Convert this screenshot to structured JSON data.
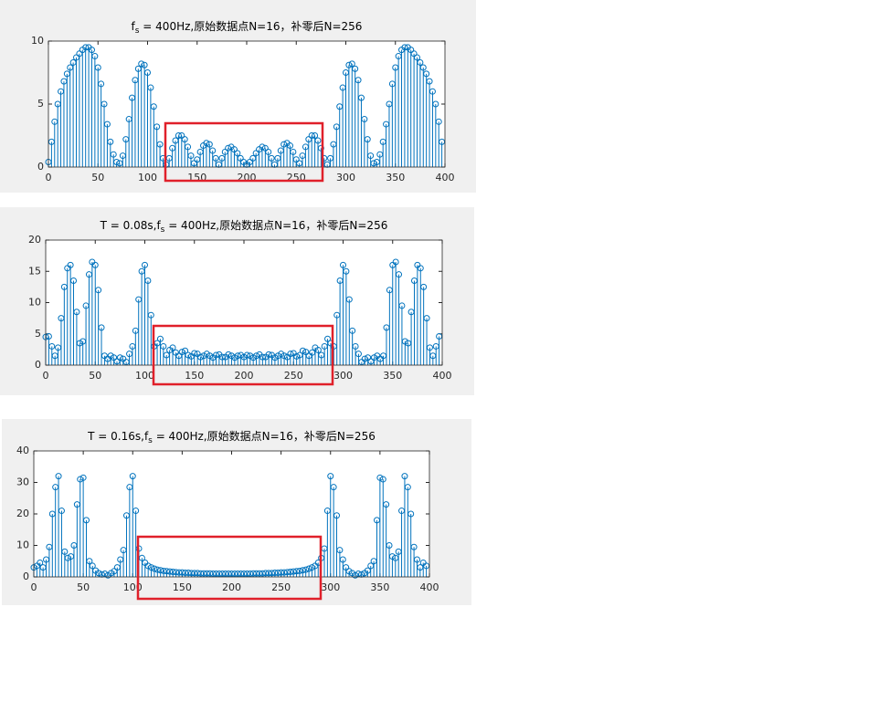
{
  "chart_data": [
    {
      "type": "stem",
      "title_parts": [
        "f",
        "s",
        " = 400Hz,原始数据点N=16，补零后N=256"
      ],
      "color": "#0072bd",
      "xlim": [
        0,
        400
      ],
      "ylim": [
        0,
        10
      ],
      "xticks": [
        0,
        50,
        100,
        150,
        200,
        250,
        300,
        350,
        400
      ],
      "yticks": [
        0,
        5,
        10
      ],
      "x": [
        0,
        3.125,
        6.25,
        9.375,
        12.5,
        15.625,
        18.75,
        21.875,
        25,
        28.125,
        31.25,
        34.375,
        37.5,
        40.625,
        43.75,
        46.875,
        50,
        53.125,
        56.25,
        59.375,
        62.5,
        65.625,
        68.75,
        71.875,
        75,
        78.125,
        81.25,
        84.375,
        87.5,
        90.625,
        93.75,
        96.875,
        100,
        103.125,
        106.25,
        109.375,
        112.5,
        115.625,
        118.75,
        121.875,
        125,
        128.125,
        131.25,
        134.375,
        137.5,
        140.625,
        143.75,
        146.875,
        150,
        153.125,
        156.25,
        159.375,
        162.5,
        165.625,
        168.75,
        171.875,
        175,
        178.125,
        181.25,
        184.375,
        187.5,
        190.625,
        193.75,
        196.875,
        200,
        203.125,
        206.25,
        209.375,
        212.5,
        215.625,
        218.75,
        221.875,
        225,
        228.125,
        231.25,
        234.375,
        237.5,
        240.625,
        243.75,
        246.875,
        250,
        253.125,
        256.25,
        259.375,
        262.5,
        265.625,
        268.75,
        271.875,
        275,
        278.125,
        281.25,
        284.375,
        287.5,
        290.625,
        293.75,
        296.875,
        300,
        303.125,
        306.25,
        309.375,
        312.5,
        315.625,
        318.75,
        321.875,
        325,
        328.125,
        331.25,
        334.375,
        337.5,
        340.625,
        343.75,
        346.875,
        350,
        353.125,
        356.25,
        359.375,
        362.5,
        365.625,
        368.75,
        371.875,
        375,
        378.125,
        381.25,
        384.375,
        387.5,
        390.625,
        393.75,
        396.875
      ],
      "values": [
        0.4,
        2.0,
        3.6,
        5.0,
        6.0,
        6.8,
        7.4,
        7.9,
        8.3,
        8.7,
        9.0,
        9.3,
        9.5,
        9.5,
        9.3,
        8.8,
        7.9,
        6.6,
        5.0,
        3.4,
        2.0,
        1.0,
        0.4,
        0.3,
        0.9,
        2.2,
        3.8,
        5.5,
        6.9,
        7.8,
        8.2,
        8.1,
        7.5,
        6.3,
        4.8,
        3.2,
        1.8,
        0.7,
        0.2,
        0.7,
        1.5,
        2.1,
        2.5,
        2.5,
        2.2,
        1.6,
        0.9,
        0.3,
        0.6,
        1.2,
        1.7,
        1.9,
        1.8,
        1.3,
        0.7,
        0.2,
        0.7,
        1.2,
        1.5,
        1.6,
        1.4,
        1.1,
        0.7,
        0.4,
        0.2,
        0.4,
        0.7,
        1.1,
        1.4,
        1.6,
        1.5,
        1.2,
        0.7,
        0.2,
        0.7,
        1.3,
        1.8,
        1.9,
        1.7,
        1.2,
        0.6,
        0.3,
        0.9,
        1.6,
        2.2,
        2.5,
        2.5,
        2.1,
        1.5,
        0.7,
        0.2,
        0.7,
        1.8,
        3.2,
        4.8,
        6.3,
        7.5,
        8.1,
        8.2,
        7.8,
        6.9,
        5.5,
        3.8,
        2.2,
        0.9,
        0.3,
        0.4,
        1.0,
        2.0,
        3.4,
        5.0,
        6.6,
        7.9,
        8.8,
        9.3,
        9.5,
        9.5,
        9.3,
        9.0,
        8.7,
        8.3,
        7.9,
        7.4,
        6.8,
        6.0,
        5.0,
        3.6,
        2.0
      ]
    },
    {
      "type": "stem",
      "title_parts": [
        "T = 0.08s,f",
        "s",
        " = 400Hz,原始数据点N=16，补零后N=256"
      ],
      "color": "#0072bd",
      "xlim": [
        0,
        400
      ],
      "ylim": [
        0,
        20
      ],
      "xticks": [
        0,
        50,
        100,
        150,
        200,
        250,
        300,
        350,
        400
      ],
      "yticks": [
        0,
        5,
        10,
        15,
        20
      ],
      "x": [
        0,
        3.125,
        6.25,
        9.375,
        12.5,
        15.625,
        18.75,
        21.875,
        25,
        28.125,
        31.25,
        34.375,
        37.5,
        40.625,
        43.75,
        46.875,
        50,
        53.125,
        56.25,
        59.375,
        62.5,
        65.625,
        68.75,
        71.875,
        75,
        78.125,
        81.25,
        84.375,
        87.5,
        90.625,
        93.75,
        96.875,
        100,
        103.125,
        106.25,
        109.375,
        112.5,
        115.625,
        118.75,
        121.875,
        125,
        128.125,
        131.25,
        134.375,
        137.5,
        140.625,
        143.75,
        146.875,
        150,
        153.125,
        156.25,
        159.375,
        162.5,
        165.625,
        168.75,
        171.875,
        175,
        178.125,
        181.25,
        184.375,
        187.5,
        190.625,
        193.75,
        196.875,
        200,
        203.125,
        206.25,
        209.375,
        212.5,
        215.625,
        218.75,
        221.875,
        225,
        228.125,
        231.25,
        234.375,
        237.5,
        240.625,
        243.75,
        246.875,
        250,
        253.125,
        256.25,
        259.375,
        262.5,
        265.625,
        268.75,
        271.875,
        275,
        278.125,
        281.25,
        284.375,
        287.5,
        290.625,
        293.75,
        296.875,
        300,
        303.125,
        306.25,
        309.375,
        312.5,
        315.625,
        318.75,
        321.875,
        325,
        328.125,
        331.25,
        334.375,
        337.5,
        340.625,
        343.75,
        346.875,
        350,
        353.125,
        356.25,
        359.375,
        362.5,
        365.625,
        368.75,
        371.875,
        375,
        378.125,
        381.25,
        384.375,
        387.5,
        390.625,
        393.75,
        396.875
      ],
      "values": [
        4.5,
        4.6,
        3.0,
        1.5,
        2.8,
        7.5,
        12.5,
        15.5,
        16.0,
        13.5,
        8.5,
        3.5,
        3.8,
        9.5,
        14.5,
        16.5,
        16.0,
        12.0,
        6.0,
        1.5,
        1.0,
        1.5,
        1.2,
        0.6,
        1.2,
        1.0,
        0.5,
        1.8,
        3.0,
        5.5,
        10.5,
        15.0,
        16.0,
        13.5,
        8.0,
        3.0,
        3.5,
        4.2,
        3.0,
        1.6,
        2.4,
        2.8,
        2.0,
        1.5,
        2.1,
        2.3,
        1.6,
        1.4,
        1.9,
        1.8,
        1.3,
        1.5,
        1.8,
        1.5,
        1.2,
        1.6,
        1.7,
        1.3,
        1.3,
        1.7,
        1.5,
        1.2,
        1.5,
        1.6,
        1.3,
        1.6,
        1.5,
        1.2,
        1.5,
        1.7,
        1.3,
        1.3,
        1.7,
        1.6,
        1.2,
        1.5,
        1.8,
        1.5,
        1.3,
        1.8,
        1.9,
        1.4,
        1.6,
        2.3,
        2.1,
        1.5,
        2.0,
        2.8,
        2.4,
        1.6,
        3.0,
        4.2,
        3.5,
        3.0,
        8.0,
        13.5,
        16.0,
        15.0,
        10.5,
        5.5,
        3.0,
        1.8,
        0.5,
        1.0,
        1.2,
        0.6,
        1.2,
        1.5,
        1.0,
        1.5,
        6.0,
        12.0,
        16.0,
        16.5,
        14.5,
        9.5,
        3.8,
        3.5,
        8.5,
        13.5,
        16.0,
        15.5,
        12.5,
        7.5,
        2.8,
        1.5,
        3.0,
        4.6
      ]
    },
    {
      "type": "stem",
      "title_parts": [
        "T = 0.16s,f",
        "s",
        " = 400Hz,原始数据点N=16，补零后N=256"
      ],
      "color": "#0072bd",
      "xlim": [
        0,
        400
      ],
      "ylim": [
        0,
        40
      ],
      "xticks": [
        0,
        50,
        100,
        150,
        200,
        250,
        300,
        350,
        400
      ],
      "yticks": [
        0,
        10,
        20,
        30,
        40
      ],
      "x": [
        0,
        3.125,
        6.25,
        9.375,
        12.5,
        15.625,
        18.75,
        21.875,
        25,
        28.125,
        31.25,
        34.375,
        37.5,
        40.625,
        43.75,
        46.875,
        50,
        53.125,
        56.25,
        59.375,
        62.5,
        65.625,
        68.75,
        71.875,
        75,
        78.125,
        81.25,
        84.375,
        87.5,
        90.625,
        93.75,
        96.875,
        100,
        103.125,
        106.25,
        109.375,
        112.5,
        115.625,
        118.75,
        121.875,
        125,
        128.125,
        131.25,
        134.375,
        137.5,
        140.625,
        143.75,
        146.875,
        150,
        153.125,
        156.25,
        159.375,
        162.5,
        165.625,
        168.75,
        171.875,
        175,
        178.125,
        181.25,
        184.375,
        187.5,
        190.625,
        193.75,
        196.875,
        200,
        203.125,
        206.25,
        209.375,
        212.5,
        215.625,
        218.75,
        221.875,
        225,
        228.125,
        231.25,
        234.375,
        237.5,
        240.625,
        243.75,
        246.875,
        250,
        253.125,
        256.25,
        259.375,
        262.5,
        265.625,
        268.75,
        271.875,
        275,
        278.125,
        281.25,
        284.375,
        287.5,
        290.625,
        293.75,
        296.875,
        300,
        303.125,
        306.25,
        309.375,
        312.5,
        315.625,
        318.75,
        321.875,
        325,
        328.125,
        331.25,
        334.375,
        337.5,
        340.625,
        343.75,
        346.875,
        350,
        353.125,
        356.25,
        359.375,
        362.5,
        365.625,
        368.75,
        371.875,
        375,
        378.125,
        381.25,
        384.375,
        387.5,
        390.625,
        393.75,
        396.875
      ],
      "values": [
        3.0,
        3.5,
        4.5,
        3.0,
        5.5,
        9.5,
        20.0,
        28.5,
        32.0,
        21.0,
        8.0,
        6.0,
        6.5,
        10.0,
        23.0,
        31.0,
        31.5,
        18.0,
        5.0,
        3.5,
        2.0,
        1.2,
        0.8,
        1.0,
        0.5,
        1.2,
        1.8,
        3.0,
        5.5,
        8.5,
        19.5,
        28.5,
        32.0,
        21.0,
        9.0,
        6.0,
        4.5,
        3.5,
        3.0,
        2.6,
        2.3,
        2.1,
        1.9,
        1.8,
        1.7,
        1.6,
        1.5,
        1.4,
        1.4,
        1.3,
        1.3,
        1.2,
        1.2,
        1.2,
        1.1,
        1.1,
        1.1,
        1.1,
        1.0,
        1.0,
        1.0,
        1.0,
        1.0,
        1.0,
        1.0,
        1.0,
        1.0,
        1.0,
        1.0,
        1.0,
        1.0,
        1.1,
        1.1,
        1.1,
        1.1,
        1.2,
        1.2,
        1.2,
        1.3,
        1.3,
        1.4,
        1.4,
        1.5,
        1.6,
        1.7,
        1.8,
        1.9,
        2.1,
        2.3,
        2.6,
        3.0,
        3.5,
        4.5,
        6.0,
        9.0,
        21.0,
        32.0,
        28.5,
        19.5,
        8.5,
        5.5,
        3.0,
        1.8,
        1.2,
        0.5,
        1.0,
        0.8,
        1.2,
        2.0,
        3.5,
        5.0,
        18.0,
        31.5,
        31.0,
        23.0,
        10.0,
        6.5,
        6.0,
        8.0,
        21.0,
        32.0,
        28.5,
        20.0,
        9.5,
        5.5,
        3.0,
        4.5,
        3.5
      ]
    }
  ]
}
